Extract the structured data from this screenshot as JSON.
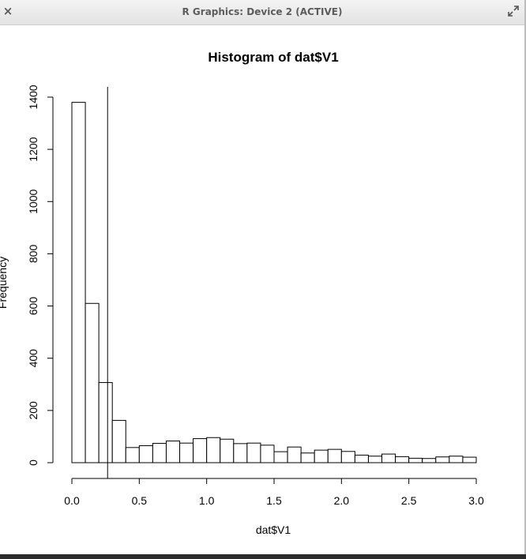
{
  "window": {
    "title": "R Graphics: Device 2 (ACTIVE)",
    "close_glyph": "×",
    "close_icon": "close-icon",
    "maximize_icon": "maximize-icon"
  },
  "chart_data": {
    "type": "bar",
    "title": "Histogram of dat$V1",
    "xlabel": "dat$V1",
    "ylabel": "Frequency",
    "bin_width": 0.1,
    "bins_start": [
      0.0,
      0.1,
      0.2,
      0.3,
      0.4,
      0.5,
      0.6,
      0.7,
      0.8,
      0.9,
      1.0,
      1.1,
      1.2,
      1.3,
      1.4,
      1.5,
      1.6,
      1.7,
      1.8,
      1.9,
      2.0,
      2.1,
      2.2,
      2.3,
      2.4,
      2.5,
      2.6,
      2.7,
      2.8,
      2.9
    ],
    "values": [
      1380,
      610,
      307,
      162,
      58,
      65,
      74,
      83,
      75,
      92,
      96,
      90,
      73,
      75,
      67,
      42,
      60,
      37,
      48,
      51,
      43,
      29,
      25,
      33,
      23,
      17,
      16,
      22,
      25,
      21
    ],
    "xlim": [
      0,
      3
    ],
    "ylim": [
      0,
      1400
    ],
    "x_ticks": [
      "0.0",
      "0.5",
      "1.0",
      "1.5",
      "2.0",
      "2.5",
      "3.0"
    ],
    "y_ticks": [
      "0",
      "200",
      "400",
      "600",
      "800",
      "1000",
      "1200",
      "1400"
    ],
    "vertical_line_x": 0.265,
    "grid": false,
    "fill_color": "#ffffff",
    "line_color": "#000000"
  }
}
